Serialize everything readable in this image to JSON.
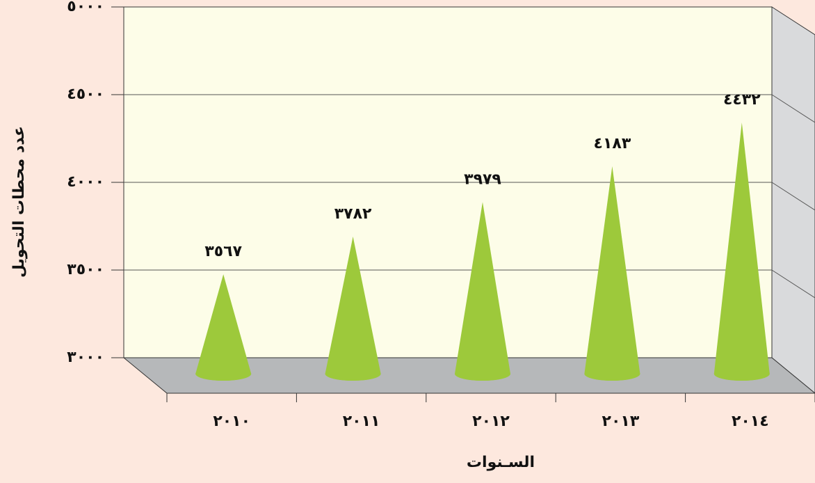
{
  "chart_data": {
    "type": "cone",
    "categories": [
      "٢٠١٠",
      "٢٠١١",
      "٢٠١٢",
      "٢٠١٣",
      "٢٠١٤"
    ],
    "values": [
      3567,
      3782,
      3979,
      4183,
      4432
    ],
    "value_labels": [
      "٣٥٦٧",
      "٣٧٨٢",
      "٣٩٧٩",
      "٤١٨٣",
      "٤٤٣٢"
    ],
    "color": "#9dc93b",
    "ylim": [
      3000,
      5000
    ],
    "yticks": [
      {
        "value": 3000,
        "label": "٣٠٠٠"
      },
      {
        "value": 3500,
        "label": "٣٥٠٠"
      },
      {
        "value": 4000,
        "label": "٤٠٠٠"
      },
      {
        "value": 4500,
        "label": "٤٥٠٠"
      },
      {
        "value": 5000,
        "label": "٥٠٠٠"
      }
    ],
    "grid": true,
    "x_label": "السـنوات",
    "y_label": "عدد محطات التحويل"
  }
}
